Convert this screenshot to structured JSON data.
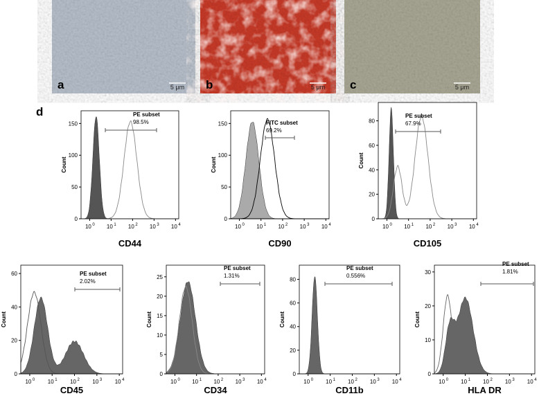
{
  "micrographs": [
    {
      "label": "a",
      "scale": "5 μm"
    },
    {
      "label": "b",
      "scale": "5 μm"
    },
    {
      "label": "c",
      "scale": "5 μm"
    }
  ],
  "panel_label": "d",
  "x_base": "10",
  "x_exponents": [
    "0",
    "1",
    "2",
    "3",
    "4"
  ],
  "histograms": [
    {
      "marker": "CD44",
      "gate": "PE subset",
      "percent": "98.5%",
      "y_label": "Count",
      "yticks": [
        "0",
        "50",
        "100",
        "150"
      ]
    },
    {
      "marker": "CD90",
      "gate": "FITC subset",
      "percent": "69.2%",
      "y_label": "Count",
      "yticks": [
        "0",
        "50",
        "100",
        "150"
      ]
    },
    {
      "marker": "CD105",
      "gate": "PE subset",
      "percent": "67.9%",
      "y_label": "Count",
      "yticks": [
        "0",
        "20",
        "40",
        "60",
        "80"
      ]
    },
    {
      "marker": "CD45",
      "gate": "PE subset",
      "percent": "2.02%",
      "y_label": "Count",
      "yticks": [
        "0",
        "20",
        "40",
        "60"
      ]
    },
    {
      "marker": "CD34",
      "gate": "PE subset",
      "percent": "1.31%",
      "y_label": "Count",
      "yticks": [
        "0",
        "5",
        "10",
        "15",
        "20",
        "25"
      ]
    },
    {
      "marker": "CD11b",
      "gate": "PE subset",
      "percent": "0.556%",
      "y_label": "Count",
      "yticks": [
        "0",
        "20",
        "40",
        "60",
        "80"
      ]
    },
    {
      "marker": "HLA DR",
      "gate": "PE subset",
      "percent": "1.81%",
      "y_label": "Count",
      "yticks": [
        "0",
        "10",
        "20",
        "30"
      ]
    }
  ]
}
